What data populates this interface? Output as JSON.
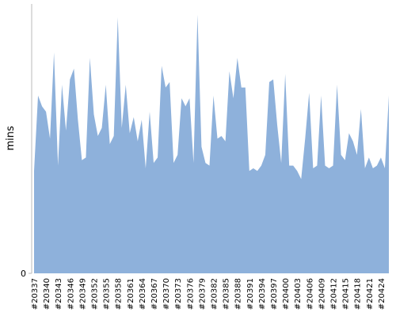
{
  "chart_data": {
    "type": "area",
    "y_label": "mins",
    "color": "#8eb1db",
    "categories": [
      "#20337",
      null,
      null,
      "#20340",
      null,
      null,
      "#20343",
      null,
      null,
      "#20346",
      null,
      null,
      "#20349",
      null,
      null,
      "#20352",
      null,
      null,
      "#20355",
      null,
      null,
      "#20358",
      null,
      null,
      "#20361",
      null,
      null,
      "#20364",
      null,
      null,
      "#20367",
      null,
      null,
      "#20370",
      null,
      null,
      "#20373",
      null,
      null,
      "#20376",
      null,
      null,
      "#20379",
      null,
      null,
      "#20382",
      null,
      null,
      "#20385",
      null,
      null,
      "#20388",
      null,
      null,
      "#20391",
      null,
      null,
      "#20394",
      null,
      null,
      "#20397",
      null,
      null,
      "#20400",
      null,
      null,
      "#20403",
      null,
      null,
      "#20406",
      null,
      null,
      "#20409",
      null,
      null,
      "#20412",
      null,
      null,
      "#20415",
      null,
      null,
      "#20418",
      null,
      null,
      "#20421",
      null,
      null,
      "#20424",
      null,
      null
    ],
    "values": [
      38,
      66,
      62,
      60,
      50,
      82,
      40,
      70,
      53,
      72,
      76,
      57,
      42,
      43,
      80,
      59,
      51,
      54,
      70,
      48,
      51,
      95,
      54,
      70,
      52,
      58,
      49,
      57,
      39,
      60,
      41,
      43,
      77,
      69,
      71,
      41,
      44,
      65,
      62,
      65,
      41,
      96,
      47,
      41,
      40,
      66,
      50,
      51,
      49,
      75,
      65,
      80,
      69,
      69,
      38,
      39,
      38,
      40,
      44,
      71,
      72,
      55,
      41,
      74,
      40,
      40,
      38,
      35,
      50,
      67,
      39,
      40,
      66,
      40,
      39,
      40,
      70,
      44,
      42,
      52,
      49,
      44,
      61,
      39,
      43,
      39,
      40,
      43,
      39,
      66
    ],
    "ylim": [
      0,
      100
    ],
    "yticks": [
      0
    ]
  }
}
